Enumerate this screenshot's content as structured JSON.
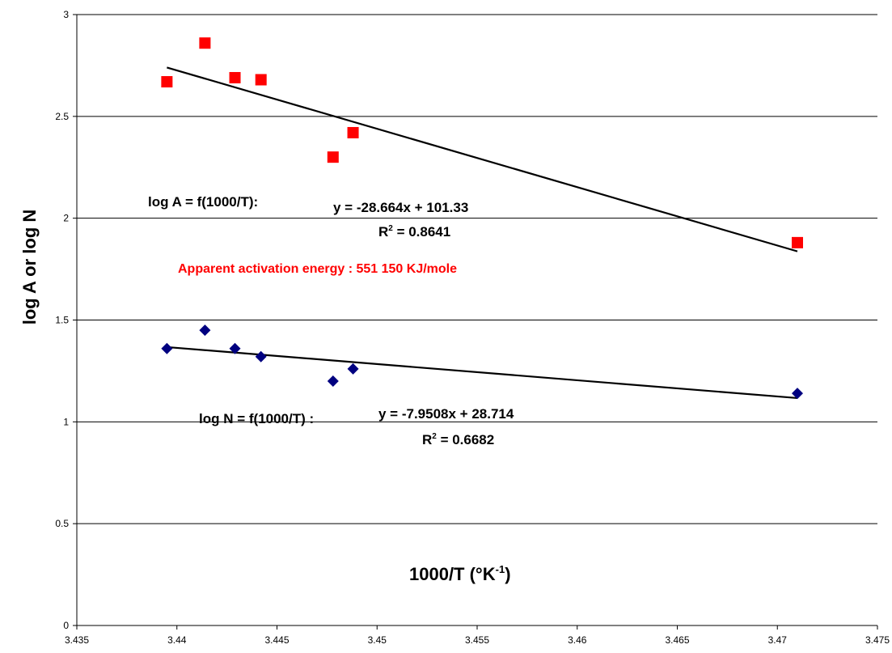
{
  "chart_data": {
    "type": "scatter",
    "xlabel": "1000/T (°K",
    "xlabel_sup": "-1",
    "xlabel_close": ")",
    "ylabel": "log A  or log N",
    "xlim": [
      3.435,
      3.475
    ],
    "ylim": [
      0,
      3
    ],
    "x_ticks": [
      "3.435",
      "3.44",
      "3.445",
      "3.45",
      "3.455",
      "3.46",
      "3.465",
      "3.47",
      "3.475"
    ],
    "y_ticks": [
      "0",
      "0.5",
      "1",
      "1.5",
      "2",
      "2.5",
      "3"
    ],
    "grid": "horizontal",
    "series": [
      {
        "marker": "square",
        "color": "#ff0000",
        "points": [
          {
            "x": 3.4395,
            "y": 2.67
          },
          {
            "x": 3.4414,
            "y": 2.86
          },
          {
            "x": 3.4429,
            "y": 2.69
          },
          {
            "x": 3.4442,
            "y": 2.68
          },
          {
            "x": 3.4478,
            "y": 2.3
          },
          {
            "x": 3.4488,
            "y": 2.42
          },
          {
            "x": 3.471,
            "y": 1.88
          }
        ],
        "trend": {
          "slope": -28.664,
          "intercept": 101.33,
          "x_range": [
            3.4395,
            3.471
          ]
        }
      },
      {
        "marker": "diamond",
        "color": "#000080",
        "points": [
          {
            "x": 3.4395,
            "y": 1.36
          },
          {
            "x": 3.4414,
            "y": 1.45
          },
          {
            "x": 3.4429,
            "y": 1.36
          },
          {
            "x": 3.4442,
            "y": 1.32
          },
          {
            "x": 3.4478,
            "y": 1.2
          },
          {
            "x": 3.4488,
            "y": 1.26
          },
          {
            "x": 3.471,
            "y": 1.14
          }
        ],
        "trend": {
          "slope": -7.9508,
          "intercept": 28.714,
          "x_range": [
            3.4395,
            3.471
          ]
        }
      }
    ],
    "annotations": {
      "a_label": "log A = f(1000/T):",
      "a_eq": "y = -28.664x + 101.33",
      "a_r2_pre": "R",
      "a_r2_sup": "2",
      "a_r2_post": " = 0.8641",
      "energy": "Apparent activation energy : 551 150 KJ/mole",
      "n_label": "log N = f(1000/T) :",
      "n_eq": "y = -7.9508x + 28.714",
      "n_r2_pre": "R",
      "n_r2_sup": "2",
      "n_r2_post": " = 0.6682"
    }
  }
}
